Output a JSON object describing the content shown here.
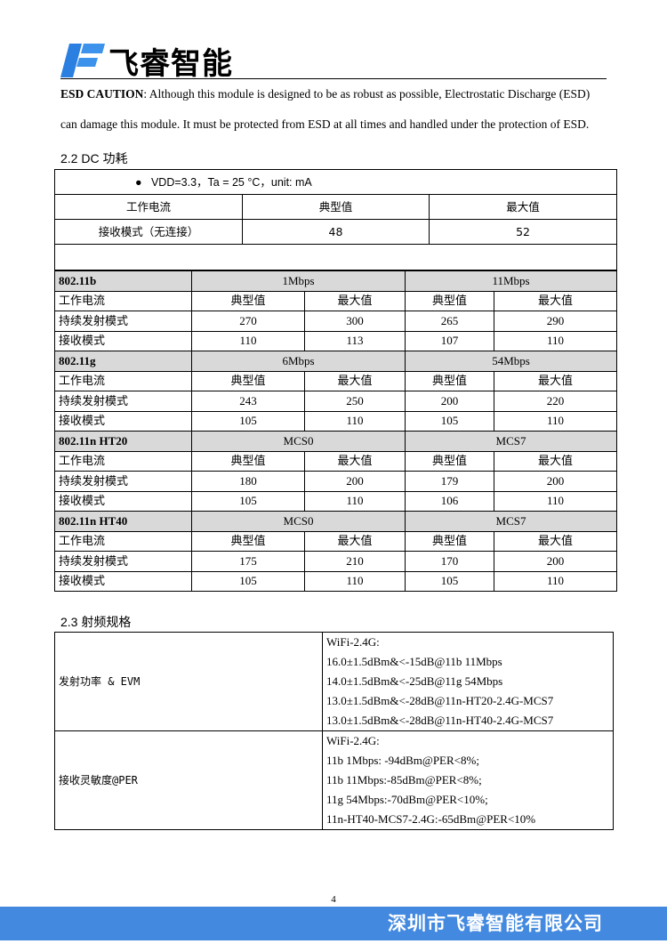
{
  "header": {
    "logo_text": "飞睿智能",
    "brand_color": "#2a7fe0"
  },
  "esd": {
    "label": "ESD CAUTION",
    "line1": ": Although this module is designed to be as robust as possible, Electrostatic Discharge (ESD)",
    "line2": "can damage this module. It must be protected from ESD at all times and handled under the protection of ESD."
  },
  "dc": {
    "title": "2.2 DC 功耗",
    "condition": "VDD=3.3，Ta = 25 °C，unit: mA",
    "headers": [
      "工作电流",
      "典型值",
      "最大值"
    ],
    "row": [
      "接收模式（无连接）",
      "48",
      "52"
    ],
    "sections": [
      {
        "name": "802.11b",
        "rates": [
          "1Mbps",
          "11Mbps"
        ],
        "rows": [
          [
            "工作电流",
            "典型值",
            "最大值",
            "典型值",
            "最大值"
          ],
          [
            "持续发射模式",
            "270",
            "300",
            "265",
            "290"
          ],
          [
            "接收模式",
            "110",
            "113",
            "107",
            "110"
          ]
        ]
      },
      {
        "name": "802.11g",
        "rates": [
          "6Mbps",
          "54Mbps"
        ],
        "rows": [
          [
            "工作电流",
            "典型值",
            "最大值",
            "典型值",
            "最大值"
          ],
          [
            "持续发射模式",
            "243",
            "250",
            "200",
            "220"
          ],
          [
            "接收模式",
            "105",
            "110",
            "105",
            "110"
          ]
        ]
      },
      {
        "name": "802.11n HT20",
        "rates": [
          "MCS0",
          "MCS7"
        ],
        "rows": [
          [
            "工作电流",
            "典型值",
            "最大值",
            "典型值",
            "最大值"
          ],
          [
            "持续发射模式",
            "180",
            "200",
            "179",
            "200"
          ],
          [
            "接收模式",
            "105",
            "110",
            "106",
            "110"
          ]
        ]
      },
      {
        "name": "802.11n HT40",
        "rates": [
          "MCS0",
          "MCS7"
        ],
        "rows": [
          [
            "工作电流",
            "典型值",
            "最大值",
            "典型值",
            "最大值"
          ],
          [
            "持续发射模式",
            "175",
            "210",
            "170",
            "200"
          ],
          [
            "接收模式",
            "105",
            "110",
            "105",
            "110"
          ]
        ]
      }
    ]
  },
  "rf": {
    "title": "2.3   射频规格",
    "rows": [
      {
        "label": "发射功率 & EVM",
        "lines": [
          "WiFi-2.4G:",
          "16.0±1.5dBm&<-15dB@11b 11Mbps",
          "14.0±1.5dBm&<-25dB@11g 54Mbps",
          "13.0±1.5dBm&<-28dB@11n-HT20-2.4G-MCS7",
          "13.0±1.5dBm&<-28dB@11n-HT40-2.4G-MCS7"
        ]
      },
      {
        "label": "接收灵敏度@PER",
        "lines": [
          "WiFi-2.4G:",
          "11b 1Mbps: -94dBm@PER<8%;",
          "11b 11Mbps:-85dBm@PER<8%;",
          "11g 54Mbps:-70dBm@PER<10%;",
          "11n-HT40-MCS7-2.4G:-65dBm@PER<10%"
        ]
      }
    ]
  },
  "footer": {
    "page": "4",
    "company": "深圳市飞睿智能有限公司",
    "color": "#4389e0"
  }
}
